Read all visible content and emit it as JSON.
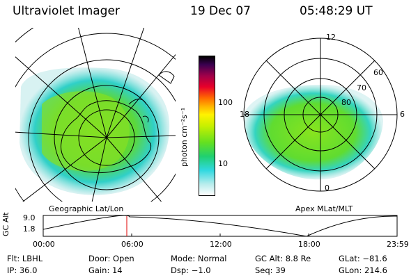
{
  "header": {
    "instrument": "Ultraviolet Imager",
    "date": "19 Dec 07",
    "time": "05:48:29 UT"
  },
  "left_panel": {
    "caption": "Geographic Lat/Lon"
  },
  "right_panel": {
    "caption": "Apex MLat/MLT",
    "mlt_labels": {
      "top": "12",
      "left": "18",
      "right": "6",
      "bottom": "0"
    },
    "mlat_labels": [
      "60",
      "70",
      "80"
    ]
  },
  "colorbar": {
    "label": "photon cm⁻²s⁻¹",
    "ticks": [
      "100",
      "10"
    ],
    "colors_top_to_bottom": [
      "#000000",
      "#3a0050",
      "#a0004a",
      "#e8002a",
      "#ff6a00",
      "#ffb400",
      "#fff200",
      "#c8f000",
      "#64e020",
      "#20d070",
      "#30d8e0",
      "#b8ecec",
      "#ffffff"
    ]
  },
  "altitude_plot": {
    "ylabel": "GC Alt",
    "yticks": [
      "9.0",
      "1.8"
    ],
    "xticks": [
      "00:00",
      "06:00",
      "12:00",
      "18:00",
      "23:59"
    ]
  },
  "info": {
    "flt_label": "Flt:",
    "flt_value": "LBHL",
    "door_label": "Door:",
    "door_value": "Open",
    "mode_label": "Mode:",
    "mode_value": "Normal",
    "gcalt_label": "GC Alt:",
    "gcalt_value": "8.8 Re",
    "glat_label": "GLat:",
    "glat_value": "−81.6",
    "ip_label": "IP:",
    "ip_value": "36.0",
    "gain_label": "Gain:",
    "gain_value": "14",
    "dsp_label": "Dsp:",
    "dsp_value": "−1.0",
    "seq_label": "Seq:",
    "seq_value": "39",
    "glon_label": "GLon:",
    "glon_value": "214.6"
  }
}
